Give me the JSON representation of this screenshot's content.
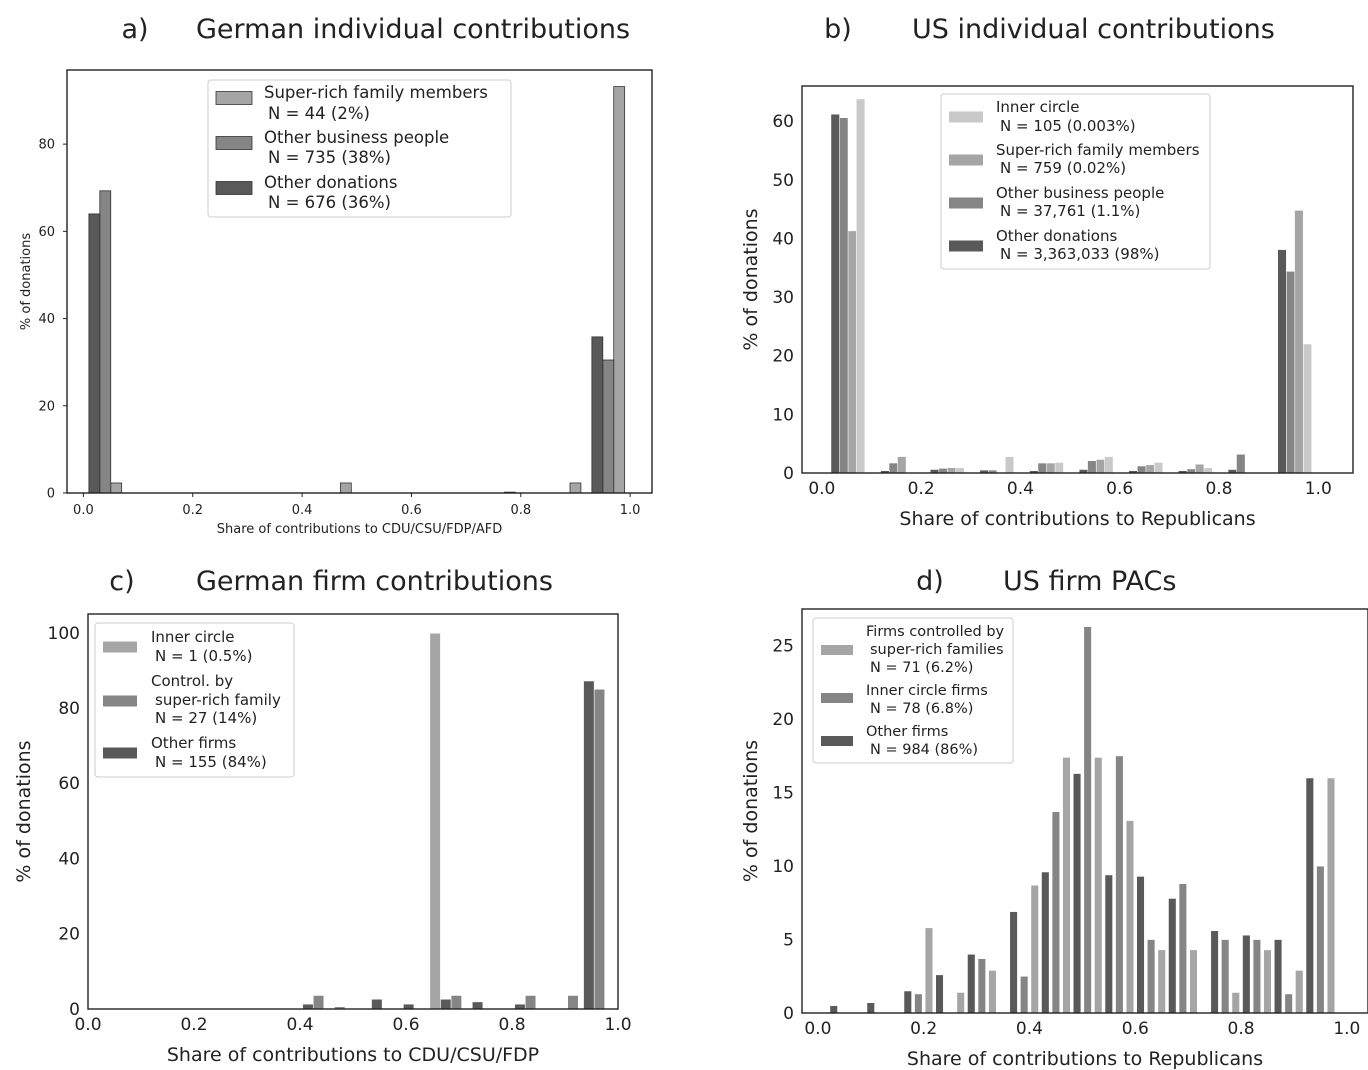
{
  "colors": {
    "lightest": "#c9c9c9",
    "light": "#a5a5a5",
    "medium": "#858585",
    "dark": "#595959",
    "axis": "#222222"
  },
  "chart_data": [
    {
      "id": "a",
      "type": "bar",
      "panel_label": "a)",
      "title": "German individual contributions",
      "xlabel": "Share of contributions to CDU/CSU/FDP/AFD",
      "ylabel": "% of donations",
      "xlim": [
        -0.03,
        1.04
      ],
      "ylim": [
        0,
        97
      ],
      "xticks": [
        0.0,
        0.2,
        0.4,
        0.6,
        0.8,
        1.0
      ],
      "xtick_labels": [
        "0.0",
        "0.2",
        "0.4",
        "0.6",
        "0.8",
        "1.0"
      ],
      "yticks": [
        0,
        20,
        40,
        60,
        80
      ],
      "ytick_labels": [
        "0",
        "20",
        "40",
        "60",
        "80"
      ],
      "bar_width": 0.02,
      "legend_position": "top-center",
      "series": [
        {
          "name": "Super-rich family members",
          "count": "N = 44 (2%)",
          "color": "#a5a5a5",
          "bars": [
            [
              0.06,
              2.3
            ],
            [
              0.48,
              2.3
            ],
            [
              0.9,
              2.3
            ],
            [
              0.98,
              93.2
            ]
          ]
        },
        {
          "name": "Other business people",
          "count": "N = 735 (38%)",
          "color": "#858585",
          "bars": [
            [
              0.04,
              69.3
            ],
            [
              0.96,
              30.5
            ]
          ]
        },
        {
          "name": "Other donations",
          "count": "N = 676 (36%)",
          "color": "#595959",
          "bars": [
            [
              0.02,
              64.0
            ],
            [
              0.78,
              0.2
            ],
            [
              0.94,
              35.8
            ]
          ]
        }
      ]
    },
    {
      "id": "b",
      "type": "bar",
      "panel_label": "b)",
      "title": "US individual contributions",
      "xlabel": "Share of contributions to Republicans",
      "ylabel": "% of donations",
      "xlim": [
        -0.04,
        1.07
      ],
      "ylim": [
        0,
        66
      ],
      "xticks": [
        0.0,
        0.2,
        0.4,
        0.6,
        0.8,
        1.0
      ],
      "xtick_labels": [
        "0.0",
        "0.2",
        "0.4",
        "0.6",
        "0.8",
        "1.0"
      ],
      "yticks": [
        0,
        10,
        20,
        30,
        40,
        50,
        60
      ],
      "ytick_labels": [
        "0",
        "10",
        "20",
        "30",
        "40",
        "50",
        "60"
      ],
      "bar_width": 0.0175,
      "legend_position": "top-center",
      "series": [
        {
          "name": "Inner circle",
          "count": "N = 105 (0.003%)",
          "color": "#c9c9c9",
          "bars": [
            [
              0.078,
              63.8
            ],
            [
              0.278,
              0.9
            ],
            [
              0.378,
              2.8
            ],
            [
              0.478,
              1.8
            ],
            [
              0.578,
              2.8
            ],
            [
              0.678,
              1.8
            ],
            [
              0.778,
              0.9
            ],
            [
              0.978,
              22.0
            ]
          ]
        },
        {
          "name": "Super-rich family members",
          "count": "N = 759 (0.02%)",
          "color": "#a5a5a5",
          "bars": [
            [
              0.061,
              41.3
            ],
            [
              0.161,
              2.8
            ],
            [
              0.261,
              0.9
            ],
            [
              0.461,
              1.7
            ],
            [
              0.561,
              2.3
            ],
            [
              0.661,
              1.4
            ],
            [
              0.761,
              1.5
            ],
            [
              0.961,
              44.8
            ]
          ]
        },
        {
          "name": "Other business people",
          "count": "N = 37,761 (1.1%)",
          "color": "#858585",
          "bars": [
            [
              0.044,
              60.6
            ],
            [
              0.144,
              1.7
            ],
            [
              0.244,
              0.8
            ],
            [
              0.344,
              0.5
            ],
            [
              0.444,
              1.7
            ],
            [
              0.544,
              2.1
            ],
            [
              0.644,
              1.2
            ],
            [
              0.744,
              0.7
            ],
            [
              0.844,
              3.2
            ],
            [
              0.944,
              34.4
            ]
          ]
        },
        {
          "name": "Other donations",
          "count": "N = 3,363,033 (98%)",
          "color": "#595959",
          "bars": [
            [
              0.027,
              61.2
            ],
            [
              0.127,
              0.4
            ],
            [
              0.227,
              0.6
            ],
            [
              0.327,
              0.5
            ],
            [
              0.427,
              0.4
            ],
            [
              0.527,
              0.6
            ],
            [
              0.627,
              0.4
            ],
            [
              0.727,
              0.4
            ],
            [
              0.827,
              0.6
            ],
            [
              0.927,
              38.1
            ]
          ]
        }
      ]
    },
    {
      "id": "c",
      "type": "bar",
      "panel_label": "c)",
      "title": "German firm contributions",
      "xlabel": "Share of contributions to CDU/CSU/FDP",
      "ylabel": "% of donations",
      "xlim": [
        0.0,
        1.0
      ],
      "ylim": [
        0,
        105
      ],
      "xticks": [
        0.0,
        0.2,
        0.4,
        0.6,
        0.8,
        1.0
      ],
      "xtick_labels": [
        "0.0",
        "0.2",
        "0.4",
        "0.6",
        "0.8",
        "1.0"
      ],
      "yticks": [
        0,
        20,
        40,
        60,
        80,
        100
      ],
      "ytick_labels": [
        "0",
        "20",
        "40",
        "60",
        "80",
        "100"
      ],
      "bar_width": 0.02,
      "legend_position": "top-left",
      "series": [
        {
          "name": "Inner circle",
          "count": "N = 1 (0.5%)",
          "color": "#a5a5a5",
          "bars": [
            [
              0.655,
              99.9
            ]
          ]
        },
        {
          "name": "Control. by super-rich family",
          "count": "N = 27 (14%)",
          "color": "#858585",
          "bars": [
            [
              0.435,
              3.6
            ],
            [
              0.475,
              0.6
            ],
            [
              0.695,
              3.6
            ],
            [
              0.835,
              3.6
            ],
            [
              0.915,
              3.6
            ],
            [
              0.965,
              85.0
            ]
          ]
        },
        {
          "name": "Other firms",
          "count": "N = 155 (84%)",
          "color": "#595959",
          "bars": [
            [
              0.415,
              1.3
            ],
            [
              0.545,
              2.6
            ],
            [
              0.605,
              1.3
            ],
            [
              0.675,
              2.6
            ],
            [
              0.735,
              1.9
            ],
            [
              0.815,
              1.3
            ],
            [
              0.945,
              87.2
            ]
          ]
        }
      ]
    },
    {
      "id": "d",
      "type": "bar",
      "panel_label": "d)",
      "title": "US firm PACs",
      "xlabel": "Share of contributions to Republicans",
      "ylabel": "% of donations",
      "xlim": [
        -0.03,
        1.04
      ],
      "ylim": [
        0,
        27.5
      ],
      "xticks": [
        0.0,
        0.2,
        0.4,
        0.6,
        0.8,
        1.0
      ],
      "xtick_labels": [
        "0.0",
        "0.2",
        "0.4",
        "0.6",
        "0.8",
        "1.0"
      ],
      "yticks": [
        0,
        5,
        10,
        15,
        20,
        25
      ],
      "ytick_labels": [
        "0",
        "5",
        "10",
        "15",
        "20",
        "25"
      ],
      "bar_width": 0.0145,
      "legend_position": "top-left",
      "series": [
        {
          "name": "Firms controlled by super-rich families",
          "count": "N = 71 (6.2%)",
          "color": "#a5a5a5",
          "bars": [
            [
              0.21,
              5.8
            ],
            [
              0.27,
              1.4
            ],
            [
              0.33,
              2.9
            ],
            [
              0.41,
              8.7
            ],
            [
              0.47,
              17.4
            ],
            [
              0.53,
              17.4
            ],
            [
              0.59,
              13.1
            ],
            [
              0.65,
              4.3
            ],
            [
              0.71,
              4.3
            ],
            [
              0.79,
              1.4
            ],
            [
              0.85,
              4.3
            ],
            [
              0.91,
              2.9
            ],
            [
              0.97,
              16.0
            ]
          ]
        },
        {
          "name": "Inner circle firms",
          "count": "N = 78 (6.8%)",
          "color": "#858585",
          "bars": [
            [
              0.19,
              1.3
            ],
            [
              0.31,
              3.7
            ],
            [
              0.39,
              2.5
            ],
            [
              0.45,
              13.7
            ],
            [
              0.51,
              26.3
            ],
            [
              0.57,
              17.5
            ],
            [
              0.63,
              5.0
            ],
            [
              0.69,
              8.8
            ],
            [
              0.77,
              5.0
            ],
            [
              0.83,
              5.0
            ],
            [
              0.89,
              1.3
            ],
            [
              0.95,
              10.0
            ]
          ]
        },
        {
          "name": "Other firms",
          "count": "N = 984 (86%)",
          "color": "#595959",
          "bars": [
            [
              0.03,
              0.5
            ],
            [
              0.1,
              0.7
            ],
            [
              0.17,
              1.5
            ],
            [
              0.23,
              2.6
            ],
            [
              0.29,
              4.0
            ],
            [
              0.37,
              6.9
            ],
            [
              0.43,
              9.6
            ],
            [
              0.49,
              16.3
            ],
            [
              0.55,
              9.4
            ],
            [
              0.61,
              9.3
            ],
            [
              0.67,
              7.8
            ],
            [
              0.75,
              5.6
            ],
            [
              0.81,
              5.3
            ],
            [
              0.87,
              5.0
            ],
            [
              0.93,
              16.0
            ]
          ]
        }
      ]
    }
  ]
}
